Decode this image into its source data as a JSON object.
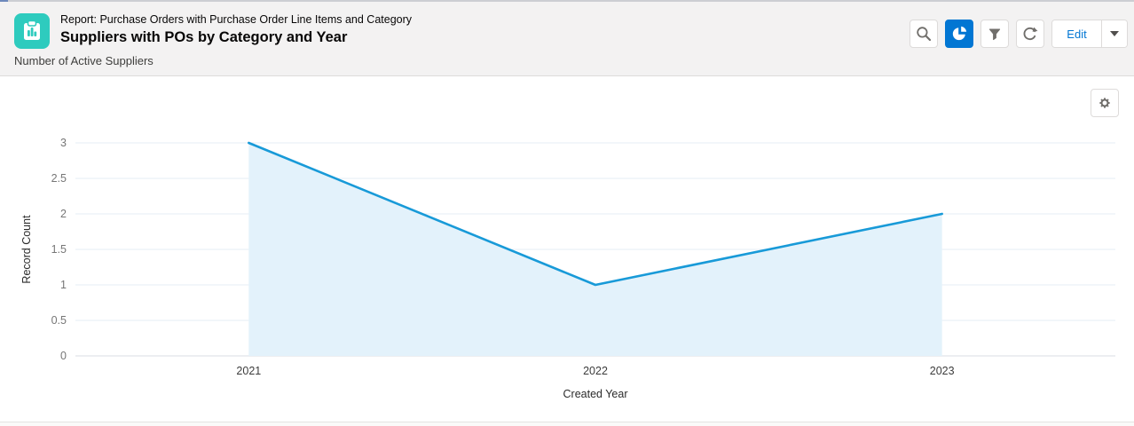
{
  "header": {
    "breadcrumb": "Report: Purchase Orders with Purchase Order Line Items and Category",
    "title": "Suppliers with POs by Category and Year",
    "subtitle": "Number of Active Suppliers",
    "report_icon_color": "#2ECBBE",
    "toolbar": {
      "search_icon": "search-icon",
      "chart_icon": "pie-chart-icon",
      "chart_button_active": true,
      "chart_button_active_color": "#0176D3",
      "filter_icon": "filter-funnel-icon",
      "refresh_icon": "refresh-icon",
      "edit_label": "Edit",
      "dropdown_icon": "chevron-down-icon"
    }
  },
  "chart_panel": {
    "settings_icon": "gear-icon"
  },
  "chart_data": {
    "type": "area",
    "categories": [
      "2021",
      "2022",
      "2023"
    ],
    "series": [
      {
        "name": "Record Count",
        "values": [
          3,
          1,
          2
        ]
      }
    ],
    "title": "",
    "xlabel": "Created Year",
    "ylabel": "Record Count",
    "ylim": [
      0,
      3
    ],
    "yticks": [
      0,
      0.5,
      1,
      1.5,
      2,
      2.5,
      3
    ],
    "grid": true,
    "legend_position": "none",
    "line_color": "#189AD8",
    "fill_color": "#E3F2FB",
    "gridline_color": "#E4EDF6",
    "baseline_color": "#D8DDE3",
    "tick_color": "#767676"
  }
}
